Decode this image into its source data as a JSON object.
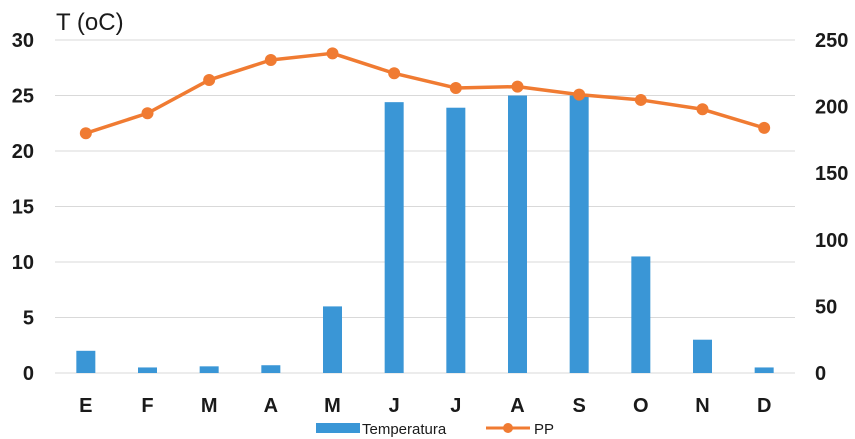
{
  "chart_data": {
    "type": "bar+line",
    "categories": [
      "E",
      "F",
      "M",
      "A",
      "M",
      "J",
      "J",
      "A",
      "S",
      "O",
      "N",
      "D"
    ],
    "ylabel": "T (oC)",
    "y_left_lim": [
      0,
      30
    ],
    "y_left_ticks": [
      "0",
      "5",
      "10",
      "15",
      "20",
      "25",
      "30"
    ],
    "y_right_lim": [
      0,
      250
    ],
    "y_right_ticks": [
      "0",
      "50",
      "100",
      "150",
      "200",
      "250"
    ],
    "grid": true,
    "legend_position": "bottom",
    "series": [
      {
        "name": "Temperatura",
        "type": "bar",
        "axis": "left",
        "color": "#3a96d6",
        "values": [
          2.0,
          0.5,
          0.6,
          0.7,
          6.0,
          24.4,
          23.9,
          25.0,
          25.0,
          10.5,
          3.0,
          0.5
        ]
      },
      {
        "name": "PP",
        "type": "line",
        "axis": "right",
        "color": "#f07b32",
        "values": [
          180,
          195,
          220,
          235,
          240,
          225,
          214,
          215,
          209,
          205,
          198,
          184
        ]
      }
    ]
  }
}
